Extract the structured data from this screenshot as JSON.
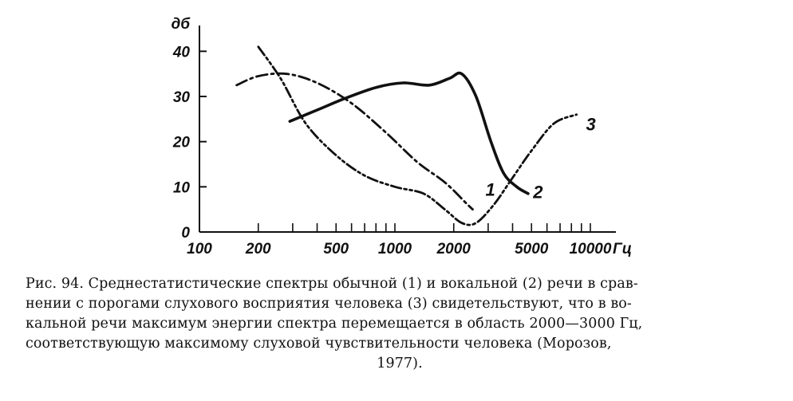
{
  "chart_data": {
    "type": "line",
    "xscale": "log",
    "xlim": [
      100,
      16000
    ],
    "ylim": [
      0,
      45
    ],
    "ylabel": "дб",
    "xlabel": "Гц",
    "yticks": [
      "0",
      "10",
      "20",
      "30",
      "40"
    ],
    "xticks": [
      "100",
      "200",
      "500",
      "1000",
      "2000",
      "5000",
      "10000"
    ],
    "series": [
      {
        "name": "1",
        "style": "dash-dot",
        "x": [
          155,
          200,
          280,
          400,
          600,
          900,
          1300,
          1800,
          2300,
          2500
        ],
        "y": [
          32.5,
          34.5,
          35,
          33,
          28.5,
          22,
          15.5,
          11,
          6.5,
          5
        ]
      },
      {
        "name": "2",
        "style": "solid",
        "x": [
          290,
          400,
          550,
          800,
          1100,
          1500,
          1900,
          2200,
          2600,
          3100,
          3600,
          4200,
          4800
        ],
        "y": [
          24.5,
          27,
          29.5,
          32,
          33,
          32.5,
          34,
          35,
          30,
          20,
          13,
          10,
          8.5
        ]
      },
      {
        "name": "3",
        "style": "dash-dot-dot",
        "x": [
          200,
          260,
          350,
          500,
          700,
          1000,
          1400,
          1800,
          2200,
          2600,
          3200,
          4000,
          5000,
          6500,
          8500
        ],
        "y": [
          41,
          34,
          24,
          17,
          12.5,
          10,
          8.5,
          5,
          2,
          2,
          6,
          12,
          18,
          24,
          26
        ]
      }
    ],
    "curve_labels": [
      "1",
      "2",
      "3"
    ]
  },
  "caption": {
    "lines": [
      "Рис. 94. Среднестатистические спектры обычной (1) и вокальной (2) речи в срав-",
      "нении с порогами слухового восприятия человека (3) свидетельствуют, что в во-",
      "кальной речи максимум энергии спектра перемещается в область 2000—3000 Гц,",
      "соответствующую максимому слуховой чувствительности человека (Морозов,",
      "1977)."
    ]
  },
  "colors": {
    "ink": "#111111",
    "paper": "#ffffff"
  }
}
